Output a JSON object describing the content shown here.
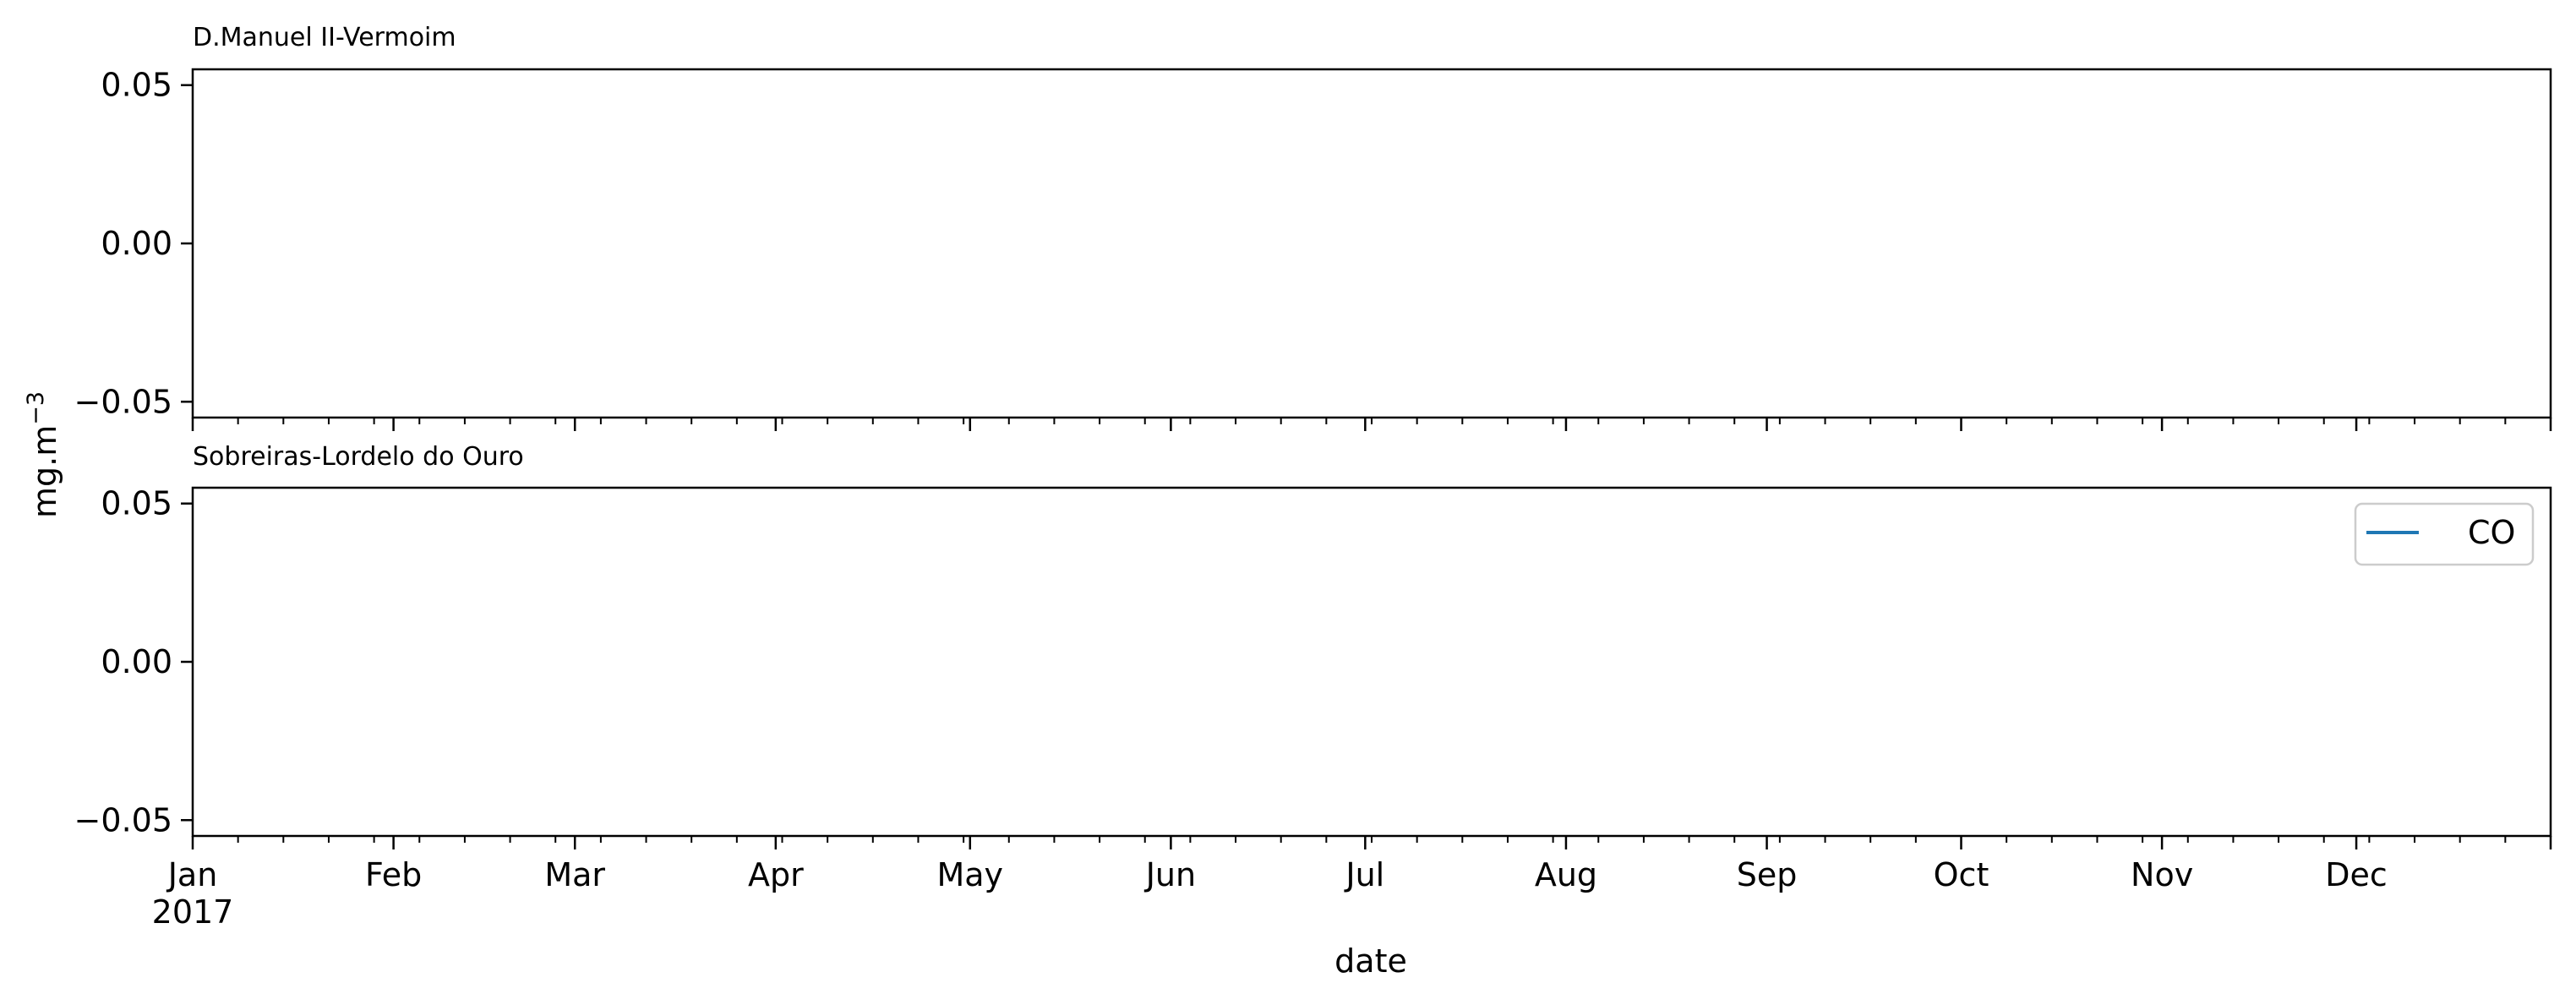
{
  "chart_data": {
    "type": "line",
    "ylabel": "mg.m",
    "ylabel_superscript": "−3",
    "xlabel": "date",
    "x_range": [
      "2017-01-01",
      "2017-12-31"
    ],
    "x_tick_labels": [
      "Jan",
      "Feb",
      "Mar",
      "Apr",
      "May",
      "Jun",
      "Jul",
      "Aug",
      "Sep",
      "Oct",
      "Nov",
      "Dec"
    ],
    "x_tick_dates": [
      "2017-01-01",
      "2017-02-01",
      "2017-03-01",
      "2017-04-01",
      "2017-05-01",
      "2017-06-01",
      "2017-07-01",
      "2017-08-01",
      "2017-09-01",
      "2017-10-01",
      "2017-11-01",
      "2017-12-01"
    ],
    "x_year_label": "2017",
    "grid": false,
    "legend": {
      "position": "upper-right",
      "entries": [
        {
          "name": "CO",
          "color": "#1f77b4"
        }
      ]
    },
    "subplots": [
      {
        "title": "D.Manuel II-Vermoim",
        "ylim": [
          -0.055,
          0.055
        ],
        "y_ticks": [
          0.05,
          0.0,
          -0.05
        ],
        "y_tick_labels": [
          "0.05",
          "0.00",
          "−0.05"
        ],
        "series": [
          {
            "name": "CO",
            "x": [],
            "y": []
          }
        ]
      },
      {
        "title": "Sobreiras-Lordelo do Ouro",
        "ylim": [
          -0.055,
          0.055
        ],
        "y_ticks": [
          0.05,
          0.0,
          -0.05
        ],
        "y_tick_labels": [
          "0.05",
          "0.00",
          "−0.05"
        ],
        "series": [
          {
            "name": "CO",
            "x": [],
            "y": []
          }
        ]
      }
    ]
  }
}
